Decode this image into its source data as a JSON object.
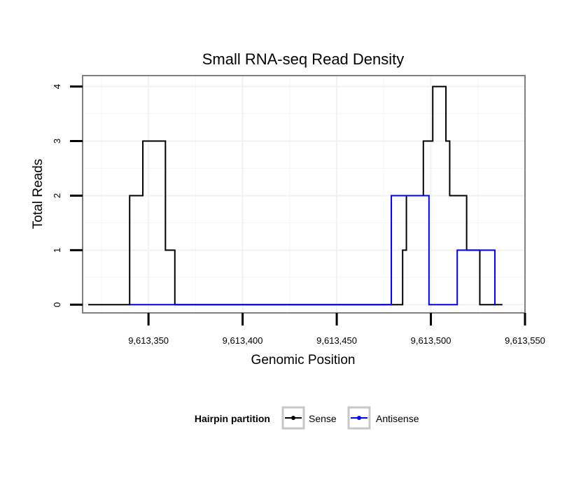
{
  "chart_data": {
    "type": "line",
    "title": "Small RNA-seq Read Density",
    "xlabel": "Genomic Position",
    "ylabel": "Total Reads",
    "xlim": [
      9613315,
      9613550
    ],
    "ylim": [
      -0.15,
      4.2
    ],
    "x_ticks": [
      9613350,
      9613400,
      9613450,
      9613500,
      9613550
    ],
    "x_tick_labels": [
      "9,613,350",
      "9,613,400",
      "9,613,450",
      "9,613,500",
      "9,613,550"
    ],
    "y_ticks": [
      0,
      1,
      2,
      3,
      4
    ],
    "y_tick_labels": [
      "0",
      "1",
      "2",
      "3",
      "4"
    ],
    "grid": true,
    "legend": {
      "title": "Hairpin partition",
      "position": "bottom"
    },
    "series": [
      {
        "name": "Sense",
        "color": "#000000",
        "step": true,
        "points": [
          [
            9613318,
            0
          ],
          [
            9613340,
            2
          ],
          [
            9613347,
            3
          ],
          [
            9613359,
            1
          ],
          [
            9613364,
            0
          ],
          [
            9613485,
            1
          ],
          [
            9613487,
            2
          ],
          [
            9613496,
            3
          ],
          [
            9613501,
            4
          ],
          [
            9613508,
            3
          ],
          [
            9613510,
            2
          ],
          [
            9613519,
            1
          ],
          [
            9613526,
            0
          ],
          [
            9613538,
            0
          ]
        ]
      },
      {
        "name": "Antisense",
        "color": "#0000ff",
        "step": true,
        "points": [
          [
            9613340,
            0
          ],
          [
            9613364,
            0
          ],
          [
            9613479,
            2
          ],
          [
            9613499,
            0
          ],
          [
            9613514,
            1
          ],
          [
            9613534,
            0
          ]
        ]
      }
    ]
  }
}
